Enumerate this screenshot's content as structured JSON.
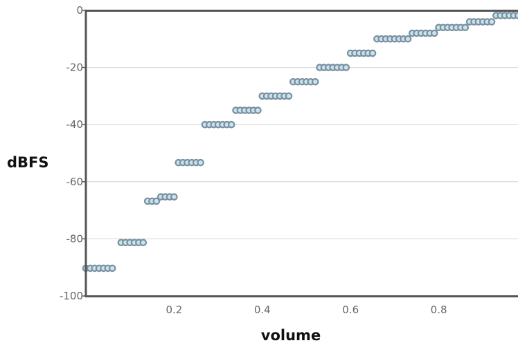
{
  "chart_data": {
    "type": "scatter",
    "title": "",
    "xlabel": "volume",
    "ylabel": "dBFS",
    "xlim": [
      0,
      0.98
    ],
    "ylim": [
      -100,
      0
    ],
    "x_ticks": [
      0.2,
      0.4,
      0.6,
      0.8
    ],
    "x_tick_labels": [
      "0.2",
      "0.4",
      "0.6",
      "0.8"
    ],
    "y_ticks": [
      0,
      -20,
      -40,
      -60,
      -80,
      -100
    ],
    "y_tick_labels": [
      "0",
      "-20",
      "-40",
      "-60",
      "-80",
      "-100"
    ],
    "grid": "horizontal",
    "legend": "none",
    "series": [
      {
        "points": [
          [
            0.0,
            -90.3
          ],
          [
            0.01,
            -90.3
          ],
          [
            0.02,
            -90.3
          ],
          [
            0.03,
            -90.3
          ],
          [
            0.04,
            -90.3
          ],
          [
            0.05,
            -90.3
          ],
          [
            0.06,
            -90.3
          ],
          [
            0.08,
            -81.3
          ],
          [
            0.09,
            -81.3
          ],
          [
            0.1,
            -81.3
          ],
          [
            0.11,
            -81.3
          ],
          [
            0.12,
            -81.3
          ],
          [
            0.13,
            -81.3
          ],
          [
            0.14,
            -66.8
          ],
          [
            0.15,
            -66.8
          ],
          [
            0.16,
            -66.8
          ],
          [
            0.17,
            -65.3
          ],
          [
            0.18,
            -65.3
          ],
          [
            0.19,
            -65.3
          ],
          [
            0.2,
            -65.3
          ],
          [
            0.21,
            -53.3
          ],
          [
            0.22,
            -53.3
          ],
          [
            0.23,
            -53.3
          ],
          [
            0.24,
            -53.3
          ],
          [
            0.25,
            -53.3
          ],
          [
            0.26,
            -53.3
          ],
          [
            0.27,
            -40.0
          ],
          [
            0.28,
            -40.0
          ],
          [
            0.29,
            -40.0
          ],
          [
            0.3,
            -40.0
          ],
          [
            0.31,
            -40.0
          ],
          [
            0.32,
            -40.0
          ],
          [
            0.33,
            -40.0
          ],
          [
            0.34,
            -35.0
          ],
          [
            0.35,
            -35.0
          ],
          [
            0.36,
            -35.0
          ],
          [
            0.37,
            -35.0
          ],
          [
            0.38,
            -35.0
          ],
          [
            0.39,
            -35.0
          ],
          [
            0.4,
            -30.0
          ],
          [
            0.41,
            -30.0
          ],
          [
            0.42,
            -30.0
          ],
          [
            0.43,
            -30.0
          ],
          [
            0.44,
            -30.0
          ],
          [
            0.45,
            -30.0
          ],
          [
            0.46,
            -30.0
          ],
          [
            0.47,
            -25.0
          ],
          [
            0.48,
            -25.0
          ],
          [
            0.49,
            -25.0
          ],
          [
            0.5,
            -25.0
          ],
          [
            0.51,
            -25.0
          ],
          [
            0.52,
            -25.0
          ],
          [
            0.53,
            -20.0
          ],
          [
            0.54,
            -20.0
          ],
          [
            0.55,
            -20.0
          ],
          [
            0.56,
            -20.0
          ],
          [
            0.57,
            -20.0
          ],
          [
            0.58,
            -20.0
          ],
          [
            0.59,
            -20.0
          ],
          [
            0.6,
            -15.0
          ],
          [
            0.61,
            -15.0
          ],
          [
            0.62,
            -15.0
          ],
          [
            0.63,
            -15.0
          ],
          [
            0.64,
            -15.0
          ],
          [
            0.65,
            -15.0
          ],
          [
            0.66,
            -10.0
          ],
          [
            0.67,
            -10.0
          ],
          [
            0.68,
            -10.0
          ],
          [
            0.69,
            -10.0
          ],
          [
            0.7,
            -10.0
          ],
          [
            0.71,
            -10.0
          ],
          [
            0.72,
            -10.0
          ],
          [
            0.73,
            -10.0
          ],
          [
            0.74,
            -8.0
          ],
          [
            0.75,
            -8.0
          ],
          [
            0.76,
            -8.0
          ],
          [
            0.77,
            -8.0
          ],
          [
            0.78,
            -8.0
          ],
          [
            0.79,
            -8.0
          ],
          [
            0.8,
            -6.0
          ],
          [
            0.81,
            -6.0
          ],
          [
            0.82,
            -6.0
          ],
          [
            0.83,
            -6.0
          ],
          [
            0.84,
            -6.0
          ],
          [
            0.85,
            -6.0
          ],
          [
            0.86,
            -6.0
          ],
          [
            0.87,
            -4.0
          ],
          [
            0.88,
            -4.0
          ],
          [
            0.89,
            -4.0
          ],
          [
            0.9,
            -4.0
          ],
          [
            0.91,
            -4.0
          ],
          [
            0.92,
            -4.0
          ],
          [
            0.93,
            -1.8
          ],
          [
            0.94,
            -1.8
          ],
          [
            0.95,
            -1.8
          ],
          [
            0.96,
            -1.8
          ],
          [
            0.97,
            -1.8
          ],
          [
            0.98,
            -1.8
          ]
        ]
      }
    ]
  },
  "colors": {
    "marker_fill": "#c9e4ec",
    "marker_stroke": "#7a8fa0",
    "axis": "#555555",
    "grid": "#d4d4d4"
  }
}
